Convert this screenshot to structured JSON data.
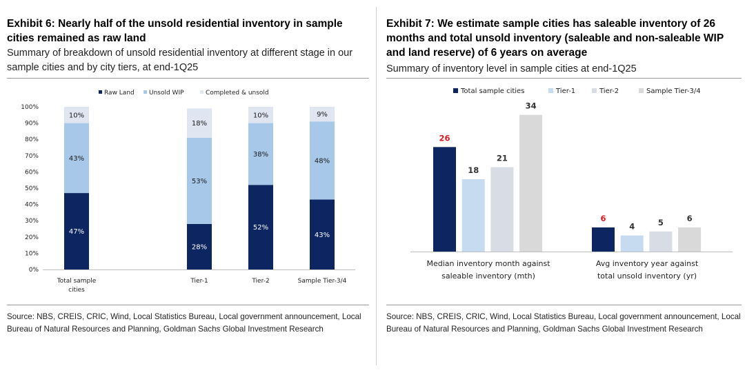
{
  "colors": {
    "raw_land": "#0d2560",
    "unsold_wip": "#a8c8ea",
    "completed_unsold": "#dfe6f2",
    "total_sample": "#0d2560",
    "tier1": "#c6dbf0",
    "tier2": "#d7dce5",
    "tier3_4": "#d9d9d9",
    "highlight_label": "#d71920"
  },
  "exhibit6": {
    "title": "Exhibit 6: Nearly half of the unsold residential inventory in sample cities remained as raw land",
    "subtitle": "Summary of breakdown of unsold residential inventory at different stage in our sample cities and by city tiers, at end-1Q25",
    "source": "Source: NBS, CREIS, CRIC, Wind, Local Statistics Bureau, Local government announcement, Local Bureau of Natural Resources and Planning, Goldman Sachs Global Investment Research"
  },
  "exhibit7": {
    "title": "Exhibit 7: We estimate sample cities has saleable inventory of 26 months and total unsold inventory (saleable and non-saleable WIP and land reserve) of 6 years on average",
    "subtitle": "Summary of inventory level in sample cities at end-1Q25",
    "source": "Source: NBS, CREIS, CRIC, Wind, Local Statistics Bureau, Local government announcement, Local Bureau of Natural Resources and Planning, Goldman Sachs Global Investment Research"
  },
  "chart_data": [
    {
      "type": "bar",
      "stacked": true,
      "categories": [
        "Total sample cities",
        "Tier-1",
        "Tier-2",
        "Sample Tier-3/4"
      ],
      "series": [
        {
          "name": "Raw Land",
          "values": [
            47,
            28,
            52,
            43
          ],
          "labels": [
            "47%",
            "28%",
            "52%",
            "43%"
          ]
        },
        {
          "name": "Unsold WIP",
          "values": [
            43,
            53,
            38,
            48
          ],
          "labels": [
            "43%",
            "53%",
            "38%",
            "48%"
          ]
        },
        {
          "name": "Completed & unsold",
          "values": [
            10,
            18,
            10,
            9
          ],
          "labels": [
            "10%",
            "18%",
            "10%",
            "9%"
          ]
        }
      ],
      "ylim": [
        0,
        100
      ],
      "yticks": [
        "0%",
        "10%",
        "20%",
        "30%",
        "40%",
        "50%",
        "60%",
        "70%",
        "80%",
        "90%",
        "100%"
      ],
      "legend": "top",
      "grid": false
    },
    {
      "type": "bar",
      "categories": [
        "Median inventory month against saleable inventory (mth)",
        "Avg inventory year against total unsold inventory (yr)"
      ],
      "series": [
        {
          "name": "Total sample cities",
          "values": [
            26,
            6
          ]
        },
        {
          "name": "Tier-1",
          "values": [
            18,
            4
          ]
        },
        {
          "name": "Tier-2",
          "values": [
            21,
            5
          ]
        },
        {
          "name": "Sample Tier-3/4",
          "values": [
            34,
            6
          ]
        }
      ],
      "ylim": [
        0,
        36
      ],
      "legend": "top",
      "grid": false
    }
  ]
}
